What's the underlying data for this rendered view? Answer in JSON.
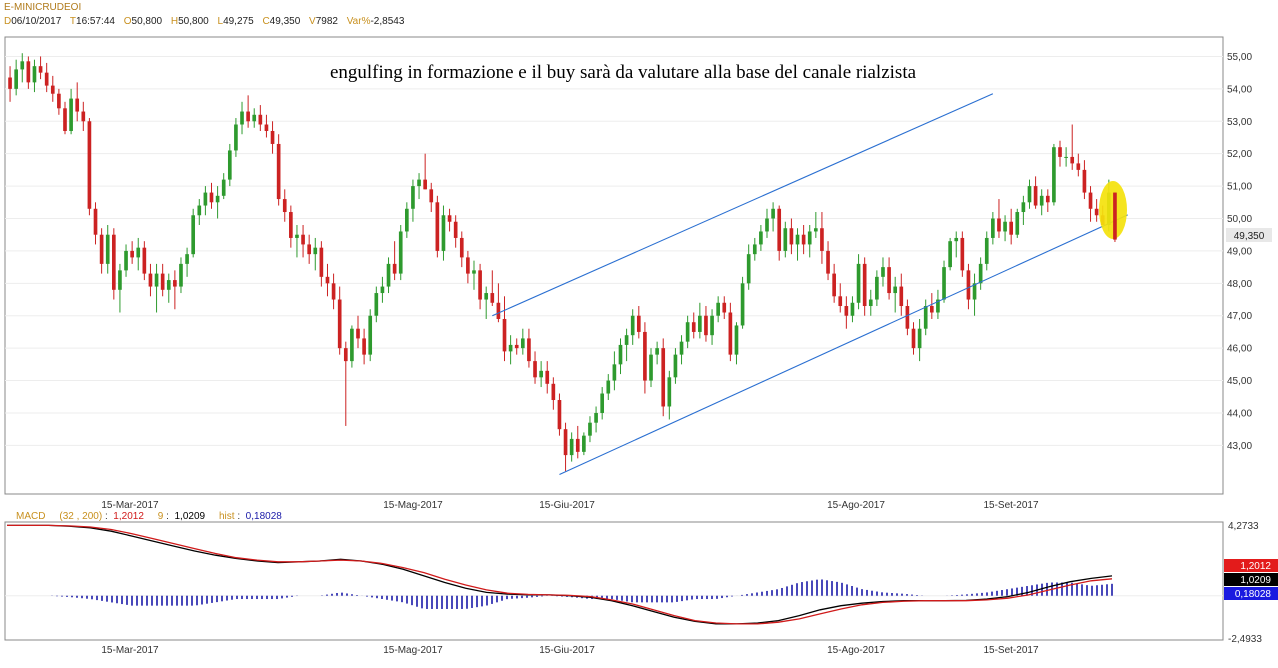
{
  "header": {
    "symbol": "E-MINICRUDEOI",
    "date_key": "D",
    "date": "06/10/2017",
    "time_key": "T",
    "time": "16:57:44",
    "open_key": "O",
    "open": "50,800",
    "high_key": "H",
    "high": "50,800",
    "low_key": "L",
    "low": "49,275",
    "close_key": "C",
    "close": "49,350",
    "volume_key": "V",
    "volume": "7982",
    "var_key": "Var%",
    "var": "-2,8543"
  },
  "annotation": "engulfing in formazione e il buy sarà da valutare alla base del canale rialzista",
  "colors": {
    "up": "#2e9a2e",
    "down": "#cc2222",
    "channel": "#2a6fd1",
    "highlight": "#f4e20c",
    "macd_line": "#000000",
    "signal_line": "#d01a1a",
    "hist": "#1a1aa8"
  },
  "chart_data": [
    {
      "type": "candlestick",
      "title": "",
      "price_axis": {
        "ticks": [
          "55,00",
          "54,00",
          "53,00",
          "52,00",
          "51,00",
          "50,00",
          "49,00",
          "48,00",
          "47,00",
          "46,00",
          "45,00",
          "44,00",
          "43,00"
        ],
        "ylim": [
          41.5,
          55.6
        ]
      },
      "date_labels": [
        "15-Mar-2017",
        "15-Mag-2017",
        "15-Giu-2017",
        "15-Ago-2017",
        "15-Set-2017"
      ],
      "last_price_label": "49,350",
      "ohlc": [
        [
          54.35,
          54.7,
          53.6,
          54.0
        ],
        [
          54.0,
          54.9,
          53.8,
          54.6
        ],
        [
          54.6,
          55.1,
          54.2,
          54.85
        ],
        [
          54.85,
          55.0,
          54.0,
          54.2
        ],
        [
          54.2,
          54.9,
          53.9,
          54.7
        ],
        [
          54.7,
          55.0,
          54.3,
          54.5
        ],
        [
          54.5,
          54.8,
          53.9,
          54.1
        ],
        [
          54.1,
          54.4,
          53.6,
          53.85
        ],
        [
          53.85,
          54.0,
          53.2,
          53.4
        ],
        [
          53.4,
          53.6,
          52.6,
          52.7
        ],
        [
          52.7,
          54.0,
          52.6,
          53.7
        ],
        [
          53.7,
          54.2,
          53.0,
          53.3
        ],
        [
          53.3,
          53.6,
          52.7,
          53.0
        ],
        [
          53.0,
          53.1,
          50.1,
          50.3
        ],
        [
          50.3,
          50.5,
          49.2,
          49.5
        ],
        [
          49.5,
          49.7,
          48.3,
          48.6
        ],
        [
          48.6,
          49.8,
          48.3,
          49.5
        ],
        [
          49.5,
          49.7,
          47.5,
          47.8
        ],
        [
          47.8,
          48.6,
          47.1,
          48.4
        ],
        [
          48.4,
          49.2,
          48.2,
          49.0
        ],
        [
          49.0,
          49.3,
          48.6,
          48.8
        ],
        [
          48.8,
          49.4,
          48.4,
          49.1
        ],
        [
          49.1,
          49.3,
          48.1,
          48.3
        ],
        [
          48.3,
          48.6,
          47.6,
          47.9
        ],
        [
          47.9,
          48.6,
          47.1,
          48.3
        ],
        [
          48.3,
          48.6,
          47.6,
          47.8
        ],
        [
          47.8,
          48.3,
          47.4,
          48.1
        ],
        [
          48.1,
          48.4,
          47.2,
          47.9
        ],
        [
          47.9,
          48.8,
          47.7,
          48.6
        ],
        [
          48.6,
          49.1,
          48.2,
          48.9
        ],
        [
          48.9,
          50.3,
          48.8,
          50.1
        ],
        [
          50.1,
          50.6,
          49.8,
          50.4
        ],
        [
          50.4,
          51.0,
          50.1,
          50.8
        ],
        [
          50.8,
          51.1,
          50.3,
          50.5
        ],
        [
          50.5,
          51.0,
          50.0,
          50.7
        ],
        [
          50.7,
          51.4,
          50.6,
          51.2
        ],
        [
          51.2,
          52.3,
          51.0,
          52.1
        ],
        [
          52.1,
          53.1,
          51.9,
          52.9
        ],
        [
          52.9,
          53.6,
          52.6,
          53.3
        ],
        [
          53.3,
          53.8,
          52.8,
          53.0
        ],
        [
          53.0,
          53.4,
          52.8,
          53.2
        ],
        [
          53.2,
          53.5,
          52.7,
          52.9
        ],
        [
          52.9,
          53.2,
          52.5,
          52.7
        ],
        [
          52.7,
          53.0,
          52.0,
          52.3
        ],
        [
          52.3,
          52.6,
          50.4,
          50.6
        ],
        [
          50.6,
          50.9,
          49.9,
          50.2
        ],
        [
          50.2,
          50.4,
          49.1,
          49.4
        ],
        [
          49.4,
          49.8,
          48.8,
          49.5
        ],
        [
          49.5,
          49.8,
          48.8,
          49.2
        ],
        [
          49.2,
          49.5,
          48.6,
          48.9
        ],
        [
          48.9,
          49.4,
          48.4,
          49.1
        ],
        [
          49.1,
          49.3,
          47.9,
          48.2
        ],
        [
          48.2,
          48.6,
          47.6,
          48.0
        ],
        [
          48.0,
          48.3,
          47.2,
          47.5
        ],
        [
          47.5,
          47.9,
          45.8,
          46.0
        ],
        [
          46.0,
          46.2,
          43.6,
          45.6
        ],
        [
          45.6,
          46.7,
          45.4,
          46.6
        ],
        [
          46.6,
          47.0,
          46.0,
          46.3
        ],
        [
          46.3,
          46.6,
          45.5,
          45.8
        ],
        [
          45.8,
          47.2,
          45.6,
          47.0
        ],
        [
          47.0,
          47.9,
          46.8,
          47.7
        ],
        [
          47.7,
          48.2,
          47.4,
          47.9
        ],
        [
          47.9,
          48.8,
          47.7,
          48.6
        ],
        [
          48.6,
          49.3,
          48.1,
          48.3
        ],
        [
          48.3,
          49.8,
          48.1,
          49.6
        ],
        [
          49.6,
          50.5,
          49.4,
          50.3
        ],
        [
          50.3,
          51.2,
          49.9,
          51.0
        ],
        [
          51.0,
          51.4,
          50.6,
          51.2
        ],
        [
          51.2,
          52.0,
          50.9,
          50.9
        ],
        [
          50.9,
          51.1,
          50.2,
          50.5
        ],
        [
          50.5,
          50.7,
          48.8,
          49.0
        ],
        [
          49.0,
          50.4,
          48.7,
          50.1
        ],
        [
          50.1,
          50.3,
          49.6,
          49.9
        ],
        [
          49.9,
          50.1,
          49.1,
          49.4
        ],
        [
          49.4,
          49.6,
          48.5,
          48.8
        ],
        [
          48.8,
          49.0,
          48.0,
          48.3
        ],
        [
          48.3,
          48.7,
          47.8,
          48.4
        ],
        [
          48.4,
          48.6,
          47.2,
          47.5
        ],
        [
          47.5,
          47.9,
          46.9,
          47.7
        ],
        [
          47.7,
          48.4,
          47.3,
          47.4
        ],
        [
          47.4,
          48.0,
          46.8,
          46.9
        ],
        [
          46.9,
          47.6,
          45.6,
          45.9
        ],
        [
          45.9,
          46.4,
          45.5,
          46.1
        ],
        [
          46.1,
          46.3,
          45.8,
          46.0
        ],
        [
          46.0,
          46.6,
          45.8,
          46.3
        ],
        [
          46.3,
          46.6,
          45.4,
          45.6
        ],
        [
          45.6,
          45.9,
          44.9,
          45.1
        ],
        [
          45.1,
          45.6,
          44.8,
          45.3
        ],
        [
          45.3,
          45.6,
          44.6,
          44.9
        ],
        [
          44.9,
          45.1,
          44.1,
          44.4
        ],
        [
          44.4,
          44.6,
          43.3,
          43.5
        ],
        [
          43.5,
          43.7,
          42.2,
          42.7
        ],
        [
          42.7,
          43.4,
          42.5,
          43.2
        ],
        [
          43.2,
          43.6,
          42.6,
          42.8
        ],
        [
          42.8,
          43.4,
          42.7,
          43.3
        ],
        [
          43.3,
          43.9,
          43.1,
          43.7
        ],
        [
          43.7,
          44.2,
          43.4,
          44.0
        ],
        [
          44.0,
          44.8,
          43.8,
          44.6
        ],
        [
          44.6,
          45.2,
          44.4,
          45.0
        ],
        [
          45.0,
          45.9,
          44.7,
          45.5
        ],
        [
          45.5,
          46.3,
          45.2,
          46.1
        ],
        [
          46.1,
          46.6,
          45.6,
          46.4
        ],
        [
          46.4,
          47.2,
          46.1,
          47.0
        ],
        [
          47.0,
          47.3,
          46.3,
          46.5
        ],
        [
          46.5,
          46.8,
          44.6,
          45.0
        ],
        [
          45.0,
          46.0,
          44.8,
          45.8
        ],
        [
          45.8,
          46.2,
          45.5,
          46.0
        ],
        [
          46.0,
          46.3,
          43.9,
          44.2
        ],
        [
          44.2,
          45.3,
          43.8,
          45.1
        ],
        [
          45.1,
          46.0,
          44.9,
          45.8
        ],
        [
          45.8,
          46.4,
          45.5,
          46.2
        ],
        [
          46.2,
          47.0,
          46.0,
          46.8
        ],
        [
          46.8,
          47.1,
          46.3,
          46.5
        ],
        [
          46.5,
          47.4,
          46.3,
          47.0
        ],
        [
          47.0,
          47.3,
          46.2,
          46.4
        ],
        [
          46.4,
          47.2,
          46.1,
          47.0
        ],
        [
          47.0,
          47.6,
          46.8,
          47.4
        ],
        [
          47.4,
          47.6,
          46.9,
          47.1
        ],
        [
          47.1,
          47.4,
          45.6,
          45.8
        ],
        [
          45.8,
          46.8,
          45.5,
          46.7
        ],
        [
          46.7,
          48.2,
          46.6,
          48.0
        ],
        [
          48.0,
          49.2,
          47.8,
          48.9
        ],
        [
          48.9,
          49.4,
          48.7,
          49.2
        ],
        [
          49.2,
          49.8,
          49.0,
          49.6
        ],
        [
          49.6,
          50.3,
          49.4,
          50.0
        ],
        [
          50.0,
          50.5,
          49.6,
          50.3
        ],
        [
          50.3,
          50.4,
          48.7,
          49.0
        ],
        [
          49.0,
          49.9,
          48.8,
          49.7
        ],
        [
          49.7,
          50.0,
          48.9,
          49.2
        ],
        [
          49.2,
          49.7,
          48.7,
          49.5
        ],
        [
          49.5,
          49.8,
          48.9,
          49.2
        ],
        [
          49.2,
          49.8,
          48.8,
          49.6
        ],
        [
          49.6,
          50.2,
          49.4,
          49.7
        ],
        [
          49.7,
          50.2,
          48.6,
          49.0
        ],
        [
          49.0,
          49.3,
          48.1,
          48.3
        ],
        [
          48.3,
          48.6,
          47.4,
          47.6
        ],
        [
          47.6,
          48.0,
          47.1,
          47.3
        ],
        [
          47.3,
          47.6,
          46.6,
          47.0
        ],
        [
          47.0,
          47.6,
          46.8,
          47.4
        ],
        [
          47.4,
          48.9,
          47.2,
          48.6
        ],
        [
          48.6,
          48.8,
          47.0,
          47.3
        ],
        [
          47.3,
          47.8,
          47.0,
          47.5
        ],
        [
          47.5,
          48.4,
          47.3,
          48.2
        ],
        [
          48.2,
          48.8,
          47.9,
          48.5
        ],
        [
          48.5,
          48.8,
          47.5,
          47.7
        ],
        [
          47.7,
          48.2,
          47.1,
          47.9
        ],
        [
          47.9,
          48.3,
          47.0,
          47.3
        ],
        [
          47.3,
          47.5,
          46.4,
          46.6
        ],
        [
          46.6,
          46.8,
          45.8,
          46.0
        ],
        [
          46.0,
          46.9,
          45.6,
          46.6
        ],
        [
          46.6,
          47.5,
          46.4,
          47.3
        ],
        [
          47.3,
          47.7,
          46.9,
          47.1
        ],
        [
          47.1,
          47.8,
          46.9,
          47.5
        ],
        [
          47.5,
          48.7,
          47.4,
          48.5
        ],
        [
          48.5,
          49.4,
          48.4,
          49.3
        ],
        [
          49.3,
          49.6,
          48.8,
          49.4
        ],
        [
          49.4,
          49.6,
          48.2,
          48.4
        ],
        [
          48.4,
          48.6,
          47.2,
          47.5
        ],
        [
          47.5,
          48.3,
          47.0,
          48.0
        ],
        [
          48.0,
          48.8,
          47.8,
          48.6
        ],
        [
          48.6,
          49.6,
          48.4,
          49.4
        ],
        [
          49.4,
          50.2,
          49.2,
          50.0
        ],
        [
          50.0,
          50.6,
          49.4,
          49.6
        ],
        [
          49.6,
          50.1,
          49.3,
          49.9
        ],
        [
          49.9,
          50.3,
          49.2,
          49.5
        ],
        [
          49.5,
          50.3,
          49.4,
          50.2
        ],
        [
          50.2,
          50.7,
          49.8,
          50.5
        ],
        [
          50.5,
          51.2,
          50.3,
          51.0
        ],
        [
          51.0,
          51.3,
          50.3,
          50.4
        ],
        [
          50.4,
          50.9,
          50.1,
          50.7
        ],
        [
          50.7,
          50.9,
          50.2,
          50.5
        ],
        [
          50.5,
          52.3,
          50.4,
          52.2
        ],
        [
          52.2,
          52.4,
          51.6,
          51.9
        ],
        [
          51.9,
          52.2,
          51.6,
          51.9
        ],
        [
          51.9,
          52.9,
          51.5,
          51.7
        ],
        [
          51.7,
          52.0,
          51.3,
          51.5
        ],
        [
          51.5,
          51.8,
          50.6,
          50.8
        ],
        [
          50.8,
          51.0,
          49.9,
          50.3
        ],
        [
          50.3,
          50.6,
          49.9,
          50.1
        ],
        [
          50.1,
          50.4,
          49.9,
          49.8
        ],
        [
          49.8,
          51.2,
          49.6,
          50.8
        ],
        [
          50.8,
          50.8,
          49.275,
          49.35
        ]
      ],
      "channel_upper": [
        [
          "16-Giu-2017",
          47.0
        ],
        [
          "25-Set-2017",
          53.85
        ]
      ],
      "channel_lower": [
        [
          "21-Giu-2017",
          42.1
        ],
        [
          "06-Ott-2017",
          48.9
        ]
      ]
    },
    {
      "type": "line",
      "title": "MACD",
      "params": "(32 , 200)",
      "signal_period": "9",
      "hist_label": "hist",
      "macd_value": "1,2012",
      "signal_value": "1,0209",
      "hist_value": "0,18028",
      "ylim": [
        -2.4933,
        4.2733
      ],
      "y_ticks": [
        "4,2733",
        "-2,4933"
      ],
      "series": [
        {
          "values": [
            4.25,
            4.25,
            4.25,
            4.2,
            4.1,
            3.9,
            3.6,
            3.3,
            3.0,
            2.7,
            2.45,
            2.25,
            2.1,
            2.0,
            2.05,
            2.1,
            2.2,
            2.1,
            1.9,
            1.6,
            1.2,
            0.8,
            0.45,
            0.2,
            0.1,
            0.05,
            0.05,
            0.0,
            -0.1,
            -0.3,
            -0.6,
            -0.95,
            -1.3,
            -1.55,
            -1.7,
            -1.7,
            -1.65,
            -1.5,
            -1.2,
            -0.85,
            -0.6,
            -0.45,
            -0.35,
            -0.3,
            -0.3,
            -0.3,
            -0.28,
            -0.2,
            -0.05,
            0.2,
            0.55,
            0.85,
            1.05,
            1.2
          ]
        },
        {
          "values": [
            4.25,
            4.25,
            4.25,
            4.22,
            4.15,
            4.0,
            3.75,
            3.45,
            3.15,
            2.85,
            2.55,
            2.3,
            2.15,
            2.05,
            2.05,
            2.1,
            2.15,
            2.1,
            1.95,
            1.7,
            1.4,
            1.0,
            0.65,
            0.35,
            0.15,
            0.08,
            0.05,
            0.02,
            -0.05,
            -0.25,
            -0.5,
            -0.85,
            -1.2,
            -1.5,
            -1.65,
            -1.7,
            -1.7,
            -1.6,
            -1.4,
            -1.1,
            -0.8,
            -0.55,
            -0.4,
            -0.33,
            -0.3,
            -0.3,
            -0.3,
            -0.25,
            -0.15,
            0.05,
            0.35,
            0.65,
            0.9,
            1.02
          ]
        }
      ]
    }
  ]
}
